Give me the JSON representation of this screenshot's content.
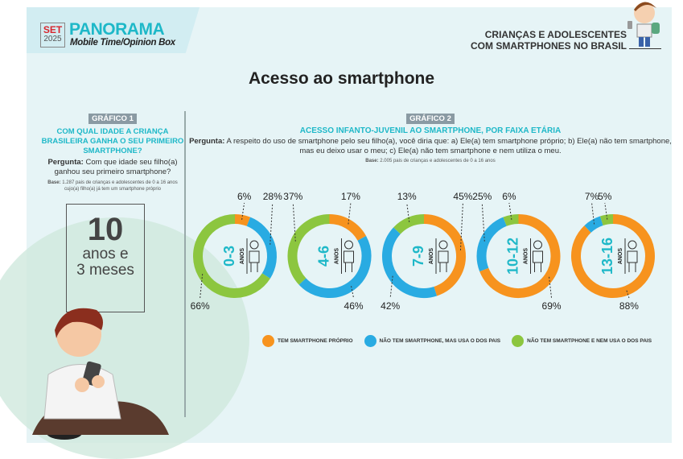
{
  "header": {
    "set_label": "SET",
    "year": "2025",
    "brand": "PANORAMA",
    "subtitle": "Mobile Time/Opinion Box",
    "right_title_1": "CRIANÇAS E ADOLESCENTES",
    "right_title_2": "COM SMARTPHONES NO BRASIL"
  },
  "page_title": "Acesso ao smartphone",
  "grafico1": {
    "tag": "GRÁFICO 1",
    "title": "COM QUAL IDADE A CRIANÇA BRASILEIRA GANHA O SEU PRIMEIRO SMARTPHONE?",
    "question_label": "Pergunta:",
    "question": " Com que idade seu filho(a) ganhou seu primeiro smartphone?",
    "base_label": "Base:",
    "base": " 1.287 pais de crianças e adolescentes de 0 a 16 anos cujo(a) filho(a) já tem um smartphone próprio",
    "value": "10",
    "unit_1": "anos e",
    "unit_2": "3 meses"
  },
  "grafico2": {
    "tag": "GRÁFICO 2",
    "title": "ACESSO INFANTO-JUVENIL AO SMARTPHONE, POR FAIXA ETÁRIA",
    "question_label": "Pergunta:",
    "question": " A respeito do uso de smartphone pelo seu filho(a), você diria que: a) Ele(a) tem smartphone próprio; b) Ele(a) não tem smartphone, mas eu deixo usar o meu; c) Ele(a) não tem smartphone e nem utiliza o meu.",
    "base_label": "Base:",
    "base": " 2.005 pais de crianças e adolescentes de 0 a 16 anos"
  },
  "chart_data": {
    "type": "pie",
    "donut": true,
    "categories": [
      "0-3",
      "4-6",
      "7-9",
      "10-12",
      "13-16"
    ],
    "category_unit": "ANOS",
    "series": [
      {
        "name": "TEM SMARTPHONE PRÓPRIO",
        "color": "#f7931e",
        "values": [
          6,
          17,
          45,
          69,
          88
        ]
      },
      {
        "name": "NÃO TEM SMARTPHONE, MAS USA O DOS PAIS",
        "color": "#29abe2",
        "values": [
          28,
          46,
          42,
          25,
          7
        ]
      },
      {
        "name": "NÃO TEM SMARTPHONE E NEM USA O DOS PAIS",
        "color": "#8cc63f",
        "values": [
          66,
          37,
          13,
          6,
          5
        ]
      }
    ],
    "legend_position": "bottom"
  }
}
